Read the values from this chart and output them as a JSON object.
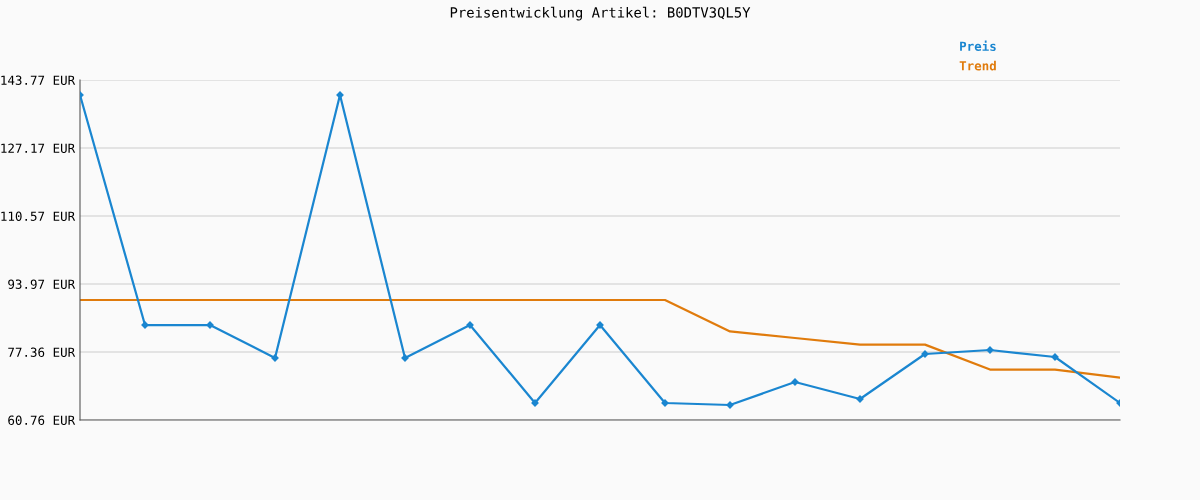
{
  "chart_data": {
    "type": "line",
    "title": "Preisentwicklung Artikel: B0DTV3QL5Y",
    "categories": [
      null,
      null,
      null,
      null,
      null,
      null,
      null,
      null,
      null,
      null,
      null,
      null,
      null,
      null,
      null,
      null,
      null
    ],
    "series": [
      {
        "name": "Preis",
        "color": "#1a86d0",
        "marker": "diamond",
        "values": [
          140.11,
          83.95,
          83.95,
          75.9,
          140.11,
          75.9,
          83.95,
          64.91,
          83.95,
          64.91,
          64.42,
          70.04,
          65.89,
          76.87,
          77.85,
          76.14,
          64.91
        ]
      },
      {
        "name": "Trend",
        "color": "#e07b0c",
        "marker": "none",
        "values": [
          90.06,
          90.06,
          90.06,
          90.06,
          90.06,
          90.06,
          90.06,
          90.06,
          90.06,
          90.06,
          82.39,
          80.78,
          79.17,
          79.17,
          73.07,
          73.07,
          71.13
        ]
      }
    ],
    "ylim": [
      60.76,
      143.77
    ],
    "yticks": [
      {
        "value": 60.76,
        "label": "60.76 EUR"
      },
      {
        "value": 77.36,
        "label": "77.36 EUR"
      },
      {
        "value": 93.97,
        "label": "93.97 EUR"
      },
      {
        "value": 110.57,
        "label": "110.57 EUR"
      },
      {
        "value": 127.17,
        "label": "127.17 EUR"
      },
      {
        "value": 143.77,
        "label": "143.77 EUR"
      }
    ],
    "grid": "y",
    "legend": "top right",
    "tick_labels": "y",
    "line_style": "solid"
  }
}
